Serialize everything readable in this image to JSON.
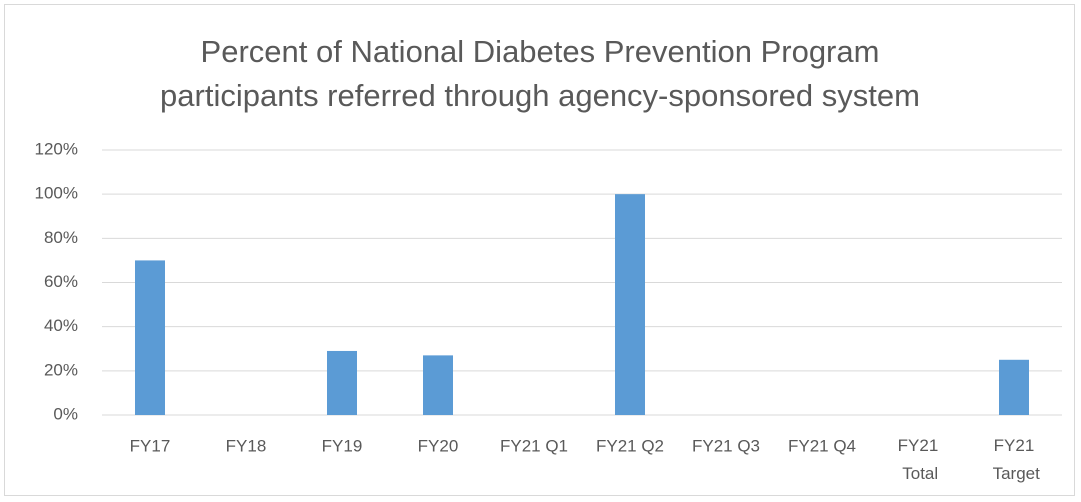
{
  "chart_data": {
    "type": "bar",
    "title": "Percent of National Diabetes Prevention Program participants referred through agency-sponsored system",
    "categories": [
      "FY17",
      "FY18",
      "FY19",
      "FY20",
      "FY21 Q1",
      "FY21 Q2",
      "FY21 Q3",
      "FY21 Q4",
      "FY21 Total",
      "FY21 Target"
    ],
    "values": [
      70,
      null,
      29,
      27,
      null,
      100,
      null,
      null,
      null,
      25
    ],
    "color": "#5b9bd5",
    "ylim": [
      0,
      120
    ],
    "yticks": [
      {
        "value": 0,
        "label": "0%"
      },
      {
        "value": 20,
        "label": "20%"
      },
      {
        "value": 40,
        "label": "40%"
      },
      {
        "value": 60,
        "label": "60%"
      },
      {
        "value": 80,
        "label": "80%"
      },
      {
        "value": 100,
        "label": "100%"
      },
      {
        "value": 120,
        "label": "120%"
      }
    ],
    "grid": true
  }
}
